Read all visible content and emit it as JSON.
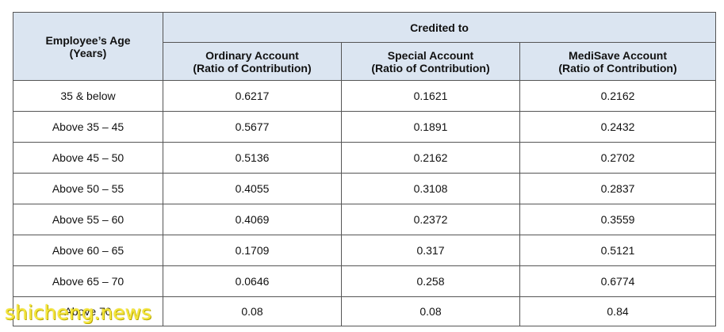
{
  "table": {
    "age_header": [
      "Employee’s Age",
      "(Years)"
    ],
    "credited_to": "Credited to",
    "columns": [
      [
        "Ordinary Account",
        "(Ratio of Contribution)"
      ],
      [
        "Special Account",
        "(Ratio of Contribution)"
      ],
      [
        "MediSave Account",
        "(Ratio of Contribution)"
      ]
    ],
    "rows": [
      [
        "35 & below",
        "0.6217",
        "0.1621",
        "0.2162"
      ],
      [
        "Above 35 – 45",
        "0.5677",
        "0.1891",
        "0.2432"
      ],
      [
        "Above 45 – 50",
        "0.5136",
        "0.2162",
        "0.2702"
      ],
      [
        "Above 50 – 55",
        "0.4055",
        "0.3108",
        "0.2837"
      ],
      [
        "Above 55 – 60",
        "0.4069",
        "0.2372",
        "0.3559"
      ],
      [
        "Above 60 – 65",
        "0.1709",
        "0.317",
        "0.5121"
      ],
      [
        "Above 65 – 70",
        "0.0646",
        "0.258",
        "0.6774"
      ],
      [
        "Above 70",
        "0.08",
        "0.08",
        "0.84"
      ]
    ]
  },
  "watermark": "shicheng.news"
}
